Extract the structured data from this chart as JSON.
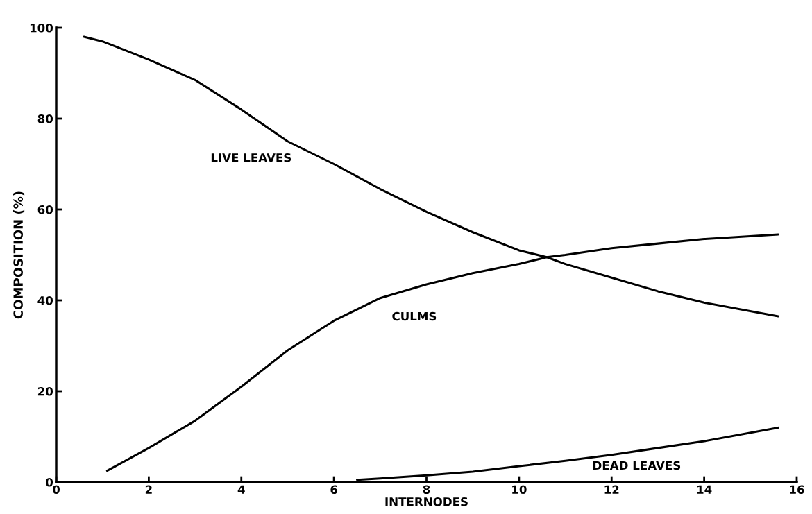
{
  "chart_data": {
    "type": "line",
    "xlabel": "INTERNODES",
    "ylabel": "COMPOSITION (%)",
    "xlim": [
      0,
      16
    ],
    "xticks": [
      0,
      2,
      4,
      6,
      8,
      10,
      12,
      14,
      16
    ],
    "ylim": [
      0,
      100
    ],
    "yticks": [
      0,
      20,
      40,
      60,
      80,
      100
    ],
    "grid": false,
    "legend": false,
    "marker": "none",
    "line_style": "solid",
    "series": [
      {
        "name": "LIVE LEAVES",
        "color": "#000000",
        "x": [
          0.6,
          1,
          2,
          3,
          4,
          5,
          6,
          7,
          8,
          9,
          10,
          10.6,
          11,
          12,
          13,
          14,
          15.6
        ],
        "values": [
          98,
          97,
          93,
          88.5,
          82,
          75,
          70,
          64.5,
          59.5,
          55,
          51,
          49.5,
          48,
          45,
          42,
          39.5,
          36.5
        ]
      },
      {
        "name": "CULMS",
        "color": "#000000",
        "x": [
          1.1,
          2,
          3,
          4,
          5,
          6,
          7,
          8,
          9,
          10,
          10.6,
          11,
          12,
          13,
          14,
          15.6
        ],
        "values": [
          2.5,
          7.5,
          13.5,
          21,
          29,
          35.5,
          40.5,
          43.5,
          46,
          48,
          49.5,
          50,
          51.5,
          52.5,
          53.5,
          54.5
        ]
      },
      {
        "name": "DEAD LEAVES",
        "color": "#000000",
        "x": [
          6.5,
          7,
          8,
          9,
          10,
          11,
          12,
          13,
          14,
          15.6
        ],
        "values": [
          0.5,
          0.8,
          1.5,
          2.3,
          3.5,
          4.7,
          6,
          7.5,
          9,
          12
        ]
      }
    ]
  }
}
